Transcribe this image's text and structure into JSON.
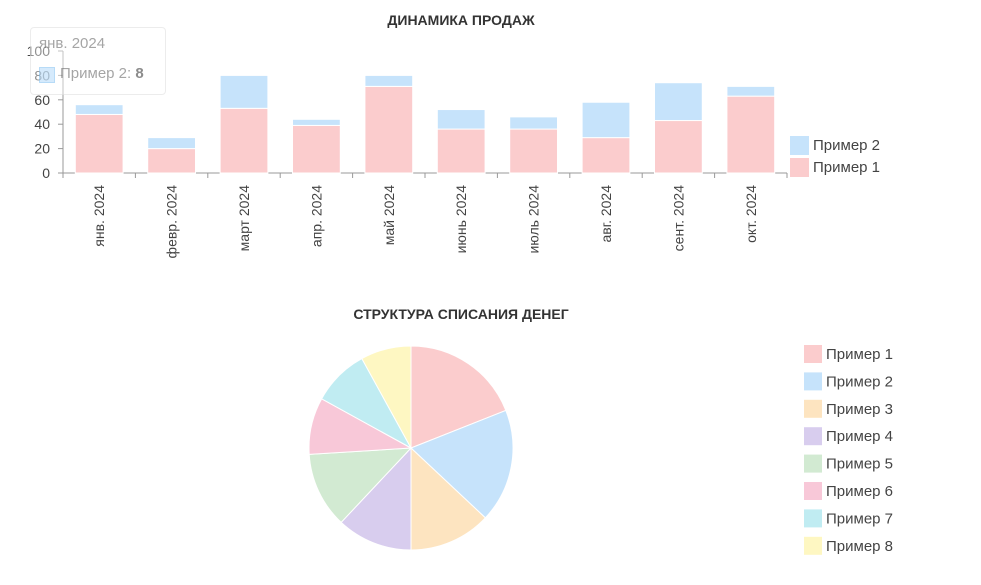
{
  "chart_data": [
    {
      "type": "bar",
      "stacked": true,
      "title": "ДИНАМИКА ПРОДАЖ",
      "categories": [
        "янв. 2024",
        "февр. 2024",
        "март 2024",
        "апр. 2024",
        "май 2024",
        "июнь 2024",
        "июль 2024",
        "авг. 2024",
        "сент. 2024",
        "окт. 2024"
      ],
      "series": [
        {
          "name": "Пример 1",
          "color": "#fbcccd",
          "values": [
            48,
            20,
            53,
            39,
            71,
            36,
            36,
            29,
            43,
            63
          ]
        },
        {
          "name": "Пример 2",
          "color": "#c6e3fb",
          "values": [
            8,
            9,
            27,
            5,
            9,
            16,
            10,
            29,
            31,
            8
          ]
        }
      ],
      "ylim": [
        0,
        100
      ],
      "yticks": [
        0,
        20,
        40,
        60,
        80,
        100
      ],
      "xlabel": "",
      "ylabel": "",
      "legend": "right",
      "tooltip": {
        "title": "янв. 2024",
        "series": "Пример 2",
        "value": "8"
      }
    },
    {
      "type": "pie",
      "title": "СТРУКТУРА СПИСАНИЯ ДЕНЕГ",
      "labels": [
        "Пример 1",
        "Пример 2",
        "Пример 3",
        "Пример 4",
        "Пример 5",
        "Пример 6",
        "Пример 7",
        "Пример 8"
      ],
      "values": [
        19,
        18,
        13,
        12,
        12,
        9,
        9,
        8
      ],
      "colors": [
        "#fbcccd",
        "#c6e3fb",
        "#fde4c0",
        "#d8cdee",
        "#d2ead2",
        "#f8c8d8",
        "#c0ecf2",
        "#fef7c2"
      ],
      "legend": "right"
    }
  ]
}
